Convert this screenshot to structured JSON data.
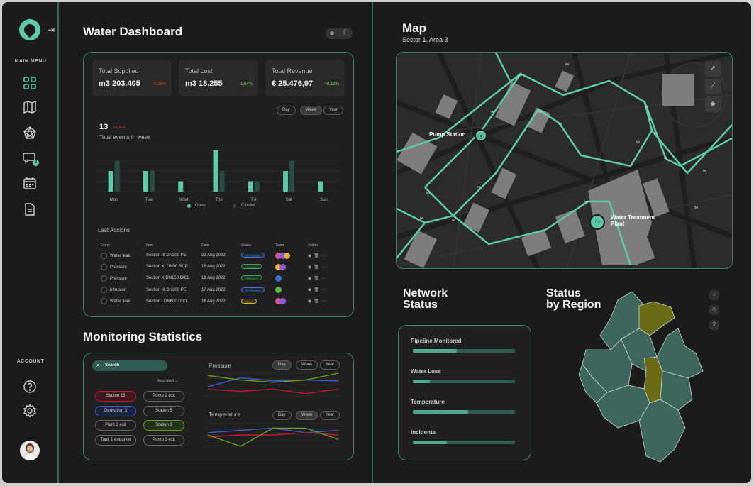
{
  "sidebar": {
    "main_menu_label": "MAIN MENU",
    "account_label": "ACCOUNT",
    "chat_badge": "3",
    "icons": [
      "grid-icon",
      "map-icon",
      "network-icon",
      "chat-icon",
      "calendar-icon",
      "document-icon"
    ],
    "account_icons": [
      "help-icon",
      "settings-icon",
      "avatar"
    ]
  },
  "dashboard": {
    "title": "Water Dashboard",
    "kpis": [
      {
        "label": "Total Supplied",
        "value": "m3 203.405",
        "change": "-5,28%",
        "color": "#d23b3b"
      },
      {
        "label": "Total Lost",
        "value": "m3 18.255",
        "change": "-1,54%",
        "color": "#7ed957"
      },
      {
        "label": "Total Revenue",
        "value": "€ 25.476,97",
        "change": "+8,12%",
        "color": "#7ed957"
      }
    ],
    "range_buttons": [
      "Day",
      "Week",
      "Year"
    ],
    "active_range": "Week",
    "events_count": "13",
    "events_change": "+5,30%",
    "events_label": "Total events in week",
    "legend_open": "Open",
    "legend_closed": "Closed",
    "last_actions_title": "Last Accions",
    "table_headers": [
      "Event",
      "Item",
      "Date",
      "Status",
      "Team",
      "Action"
    ],
    "rows": [
      {
        "event": "Water leak",
        "item": "Section III DN300 PE",
        "date": "22 Aug 2022",
        "status": "On Process",
        "status_color": "#3b6fd4",
        "team": [
          "#e0578b",
          "#8e5be0",
          "#f0b43c"
        ]
      },
      {
        "event": "Pressure",
        "item": "Section XI DN90 RCP",
        "date": "18 Aug 2022",
        "status": "Resolved",
        "status_color": "#3aa65a",
        "team": [
          "#f0b43c",
          "#8e5be0"
        ]
      },
      {
        "event": "Pressure",
        "item": "Section X DN150 DICL",
        "date": "18 Aug 2022",
        "status": "Resolved",
        "status_color": "#3aa65a",
        "team": [
          "#3b6fd4"
        ]
      },
      {
        "event": "Intrusion",
        "item": "Section III DN300 PE",
        "date": "17 Aug 2022",
        "status": "On Process",
        "status_color": "#3b6fd4",
        "team": [
          "#5ab84a"
        ]
      },
      {
        "event": "Water leak",
        "item": "Section I DN600 DICL",
        "date": "16 Aug 2022",
        "status": "Open",
        "status_color": "#d2b93b",
        "team": [
          "#e0578b",
          "#8e5be0"
        ]
      }
    ]
  },
  "chart_data": [
    {
      "type": "bar",
      "categories": [
        "Mon",
        "Tue",
        "Wed",
        "Thu",
        "Fri",
        "Sat",
        "Sun"
      ],
      "series": [
        {
          "name": "Open",
          "values": [
            5,
            5,
            2.5,
            10,
            2.5,
            5,
            2.5
          ],
          "color": "#5fcaa9"
        },
        {
          "name": "Closed",
          "values": [
            7.5,
            5,
            0,
            5,
            2.5,
            7.5,
            0
          ],
          "color": "#2b4c44"
        }
      ],
      "ylim": [
        0,
        10
      ]
    },
    {
      "type": "line",
      "title": "Pressure",
      "x": [
        0,
        1,
        2,
        3,
        4
      ],
      "series": [
        {
          "values": [
            2,
            4,
            3.3,
            3.5,
            3.3
          ],
          "color": "#3b5bd4"
        },
        {
          "values": [
            4.5,
            3.5,
            3,
            3.5,
            5
          ],
          "color": "#6a9e1f"
        },
        {
          "values": [
            1.5,
            1,
            1.5,
            0.5,
            1.5
          ],
          "color": "#c0172f"
        }
      ]
    },
    {
      "type": "line",
      "title": "Temperature",
      "x": [
        0,
        1,
        2,
        3,
        4
      ],
      "series": [
        {
          "values": [
            3,
            3.5,
            4,
            3,
            3.5
          ],
          "color": "#3b5bd4"
        },
        {
          "values": [
            2,
            2.5,
            2.5,
            3,
            2.5
          ],
          "color": "#c0172f"
        },
        {
          "values": [
            2.5,
            0,
            4,
            4,
            1.5
          ],
          "color": "#6a9e1f"
        }
      ]
    }
  ],
  "monitoring": {
    "title": "Monitoring Statistics",
    "search_label": "Search",
    "sort_label": "Most used",
    "chips": [
      {
        "label": "Station 15",
        "border": "#c0172f",
        "bg": "#3a1a1f"
      },
      {
        "label": "Pump 2 exit",
        "border": "#666",
        "bg": "transparent"
      },
      {
        "label": "Derivation 3",
        "border": "#3b5bd4",
        "bg": "#1a2440"
      },
      {
        "label": "Station 5",
        "border": "#666",
        "bg": "transparent"
      },
      {
        "label": "Plant 2 exit",
        "border": "#666",
        "bg": "transparent"
      },
      {
        "label": "Station 3",
        "border": "#6a9e1f",
        "bg": "#23331a"
      },
      {
        "label": "Tank 1 entrance",
        "border": "#666",
        "bg": "transparent"
      },
      {
        "label": "Pump 3 exit",
        "border": "#666",
        "bg": "transparent"
      }
    ],
    "pressure_label": "Pressure",
    "temperature_label": "Temperature",
    "pressure_range": [
      "Day",
      "Week",
      "Year"
    ],
    "pressure_active": "Day",
    "temperature_range": [
      "Day",
      "Week",
      "Year"
    ],
    "temperature_active": "Week"
  },
  "map": {
    "title": "Map",
    "subtitle": "Sector 1. Area 3",
    "pump_label": "Pump Station",
    "plant_label_1": "Water Treatment",
    "plant_label_2": "Plant",
    "controls": [
      "navigate-icon",
      "measure-icon",
      "layers-icon"
    ]
  },
  "network": {
    "title_1": "Network",
    "title_2": "Status",
    "items": [
      {
        "label": "Pipeline Monitored",
        "level": 0.43
      },
      {
        "label": "Water Loss",
        "level": 0.17
      },
      {
        "label": "Temperature",
        "level": 0.54
      },
      {
        "label": "Incidents",
        "level": 0.33
      }
    ]
  },
  "region": {
    "title_1": "Status",
    "title_2": "by Region",
    "controls": [
      "search-icon",
      "history-icon",
      "pin-icon"
    ]
  }
}
